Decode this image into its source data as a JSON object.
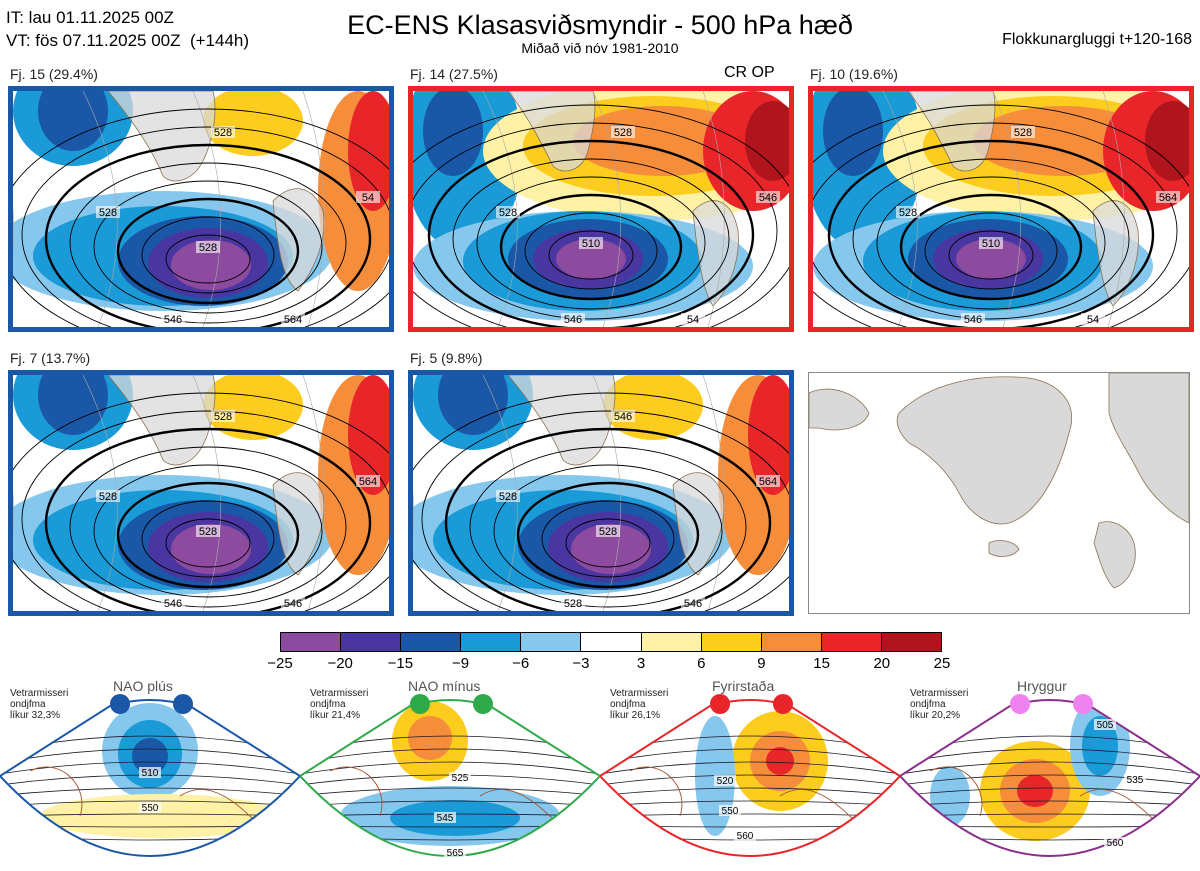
{
  "header": {
    "init_line": "IT: lau 01.11.2025 00Z",
    "valid_line": "VT: fös 07.11.2025 00Z  (+144h)",
    "title": "EC-ENS Klasasviðsmyndir - 500 hPa hæð",
    "subtitle": "Miðað við nóv 1981-2010",
    "window": "Flokkunargluggi t+120-168"
  },
  "panels": [
    {
      "label": "Fj. 15 (29.4%)",
      "tag": "",
      "regime": "nao_plus",
      "contours": [
        "528",
        "528",
        "528",
        "546",
        "564",
        "54"
      ]
    },
    {
      "label": "Fj. 14 (27.5%)",
      "tag": "CR OP",
      "regime": "blocking",
      "contours": [
        "528",
        "510",
        "528",
        "546",
        "54",
        "546"
      ]
    },
    {
      "label": "Fj. 10 (19.6%)",
      "tag": "",
      "regime": "blocking",
      "contours": [
        "528",
        "510",
        "528",
        "546",
        "54",
        "564"
      ]
    },
    {
      "label": "Fj. 7 (13.7%)",
      "tag": "",
      "regime": "nao_plus",
      "contours": [
        "528",
        "528",
        "528",
        "546",
        "546",
        "564"
      ]
    },
    {
      "label": "Fj. 5 (9.8%)",
      "tag": "",
      "regime": "nao_plus",
      "contours": [
        "528",
        "528",
        "546",
        "528",
        "546",
        "564"
      ]
    }
  ],
  "colorbar": {
    "ticks": [
      "−25",
      "−20",
      "−15",
      "−9",
      "−6",
      "−3",
      "3",
      "6",
      "9",
      "15",
      "20",
      "25"
    ],
    "colors": [
      "#8c4b9f",
      "#4a36a0",
      "#1a57a6",
      "#1a9ad6",
      "#86c7ed",
      "#ffffff",
      "#fff2a6",
      "#fccd1e",
      "#f58d3a",
      "#e8262a",
      "#b0141d"
    ]
  },
  "regimes": [
    {
      "title": "NAO plús",
      "note": "Vetrarmisseri\nondjfma\nlíkur 32,3%",
      "color": "#1a57a6",
      "dot_color": "#1a57a6",
      "labels": [
        "510",
        "550"
      ]
    },
    {
      "title": "NAO mínus",
      "note": "Vetrarmisseri\nondjfma\nlíkur 21,4%",
      "color": "#2eaa4a",
      "dot_color": "#2eaa4a",
      "labels": [
        "525",
        "545",
        "565"
      ]
    },
    {
      "title": "Fyrirstaða",
      "note": "Vetrarmisseri\nondjfma\nlíkur 26,1%",
      "color": "#e8262a",
      "dot_color": "#e8262a",
      "labels": [
        "520",
        "550",
        "560"
      ]
    },
    {
      "title": "Hryggur",
      "note": "Vetrarmisseri\nondjfma\nlíkur 20,2%",
      "color": "#8a2e8c",
      "dot_color": "#ee82ee",
      "labels": [
        "505",
        "535",
        "560"
      ]
    }
  ]
}
